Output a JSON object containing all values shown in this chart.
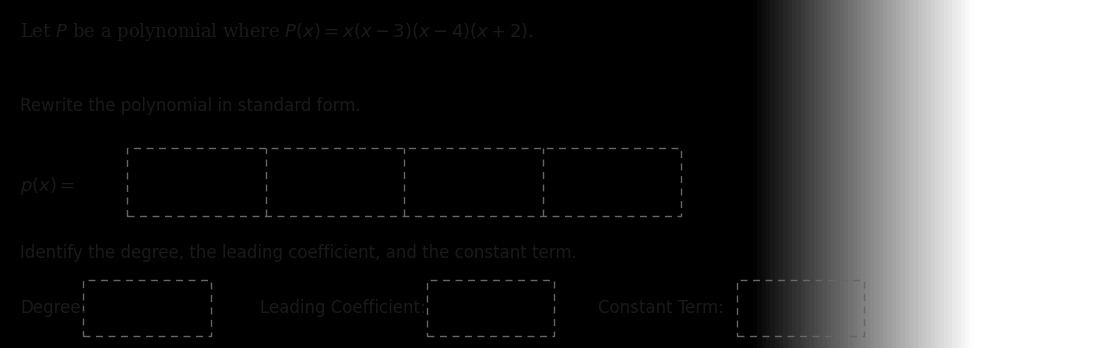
{
  "bg_color_left": "#d0d0d0",
  "bg_color_right": "#b8b8b8",
  "title_text": "Let $P$ be a polynomial where $P\\left(x\\right)=x\\left(x-3\\right)\\left(x-4\\right)\\left(x+2\\right).$",
  "subtitle1": "Rewrite the polynomial in standard form.",
  "subtitle2": "Identify the degree, the leading coefficient, and the constant term.",
  "px_label": "$p\\left(x\\right)=$",
  "degree_label": "Degree:",
  "leading_label": "Leading Coefficient:",
  "constant_label": "Constant Term:",
  "text_color": "#1a1a1a",
  "box_line_color": "#666666",
  "font_size_title": 13,
  "font_size_body": 12,
  "font_size_label": 12
}
